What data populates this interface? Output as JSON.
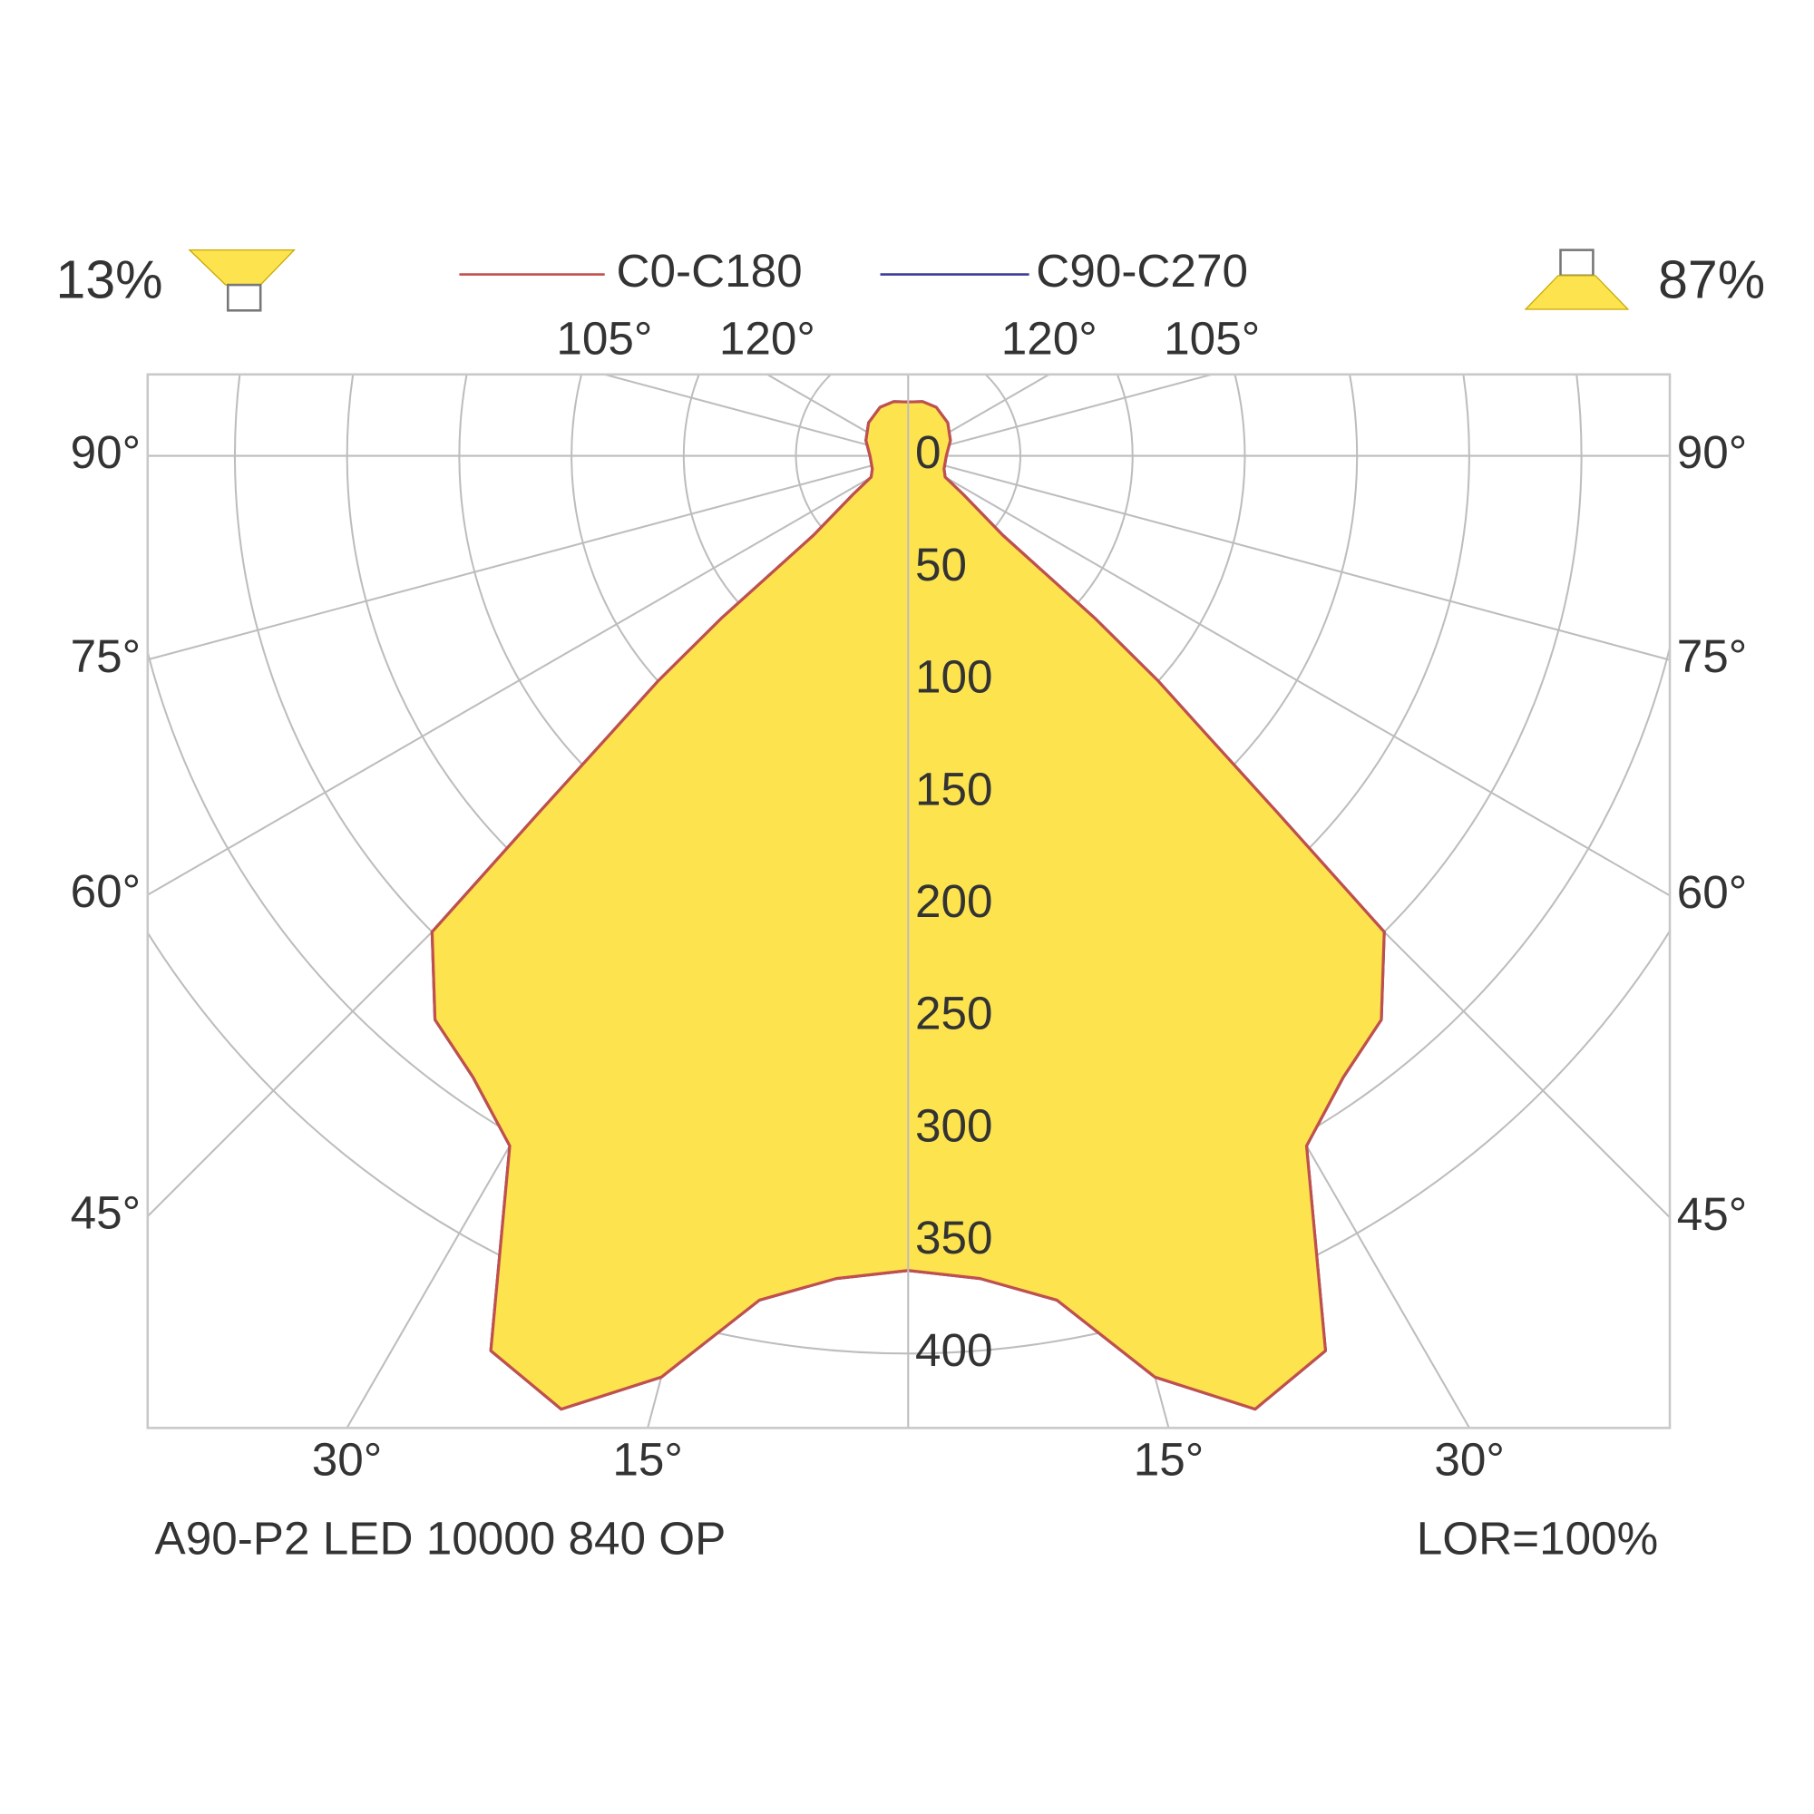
{
  "chart_data": {
    "type": "polar",
    "subtitle": "A90-P2 LED 10000 840 OP",
    "lor": "LOR=100%",
    "upward": "13%",
    "downward": "87%",
    "x": [
      0,
      5,
      10,
      15,
      20,
      25,
      30,
      35,
      40,
      45,
      46,
      47,
      48,
      49,
      50,
      55,
      60,
      70,
      90,
      110,
      130,
      150,
      165,
      180
    ],
    "series": [
      {
        "name": "C90-C270",
        "color": "#3b3b98",
        "values": [
          363,
          368,
          382,
          425,
          452,
          440,
          355,
          338,
          328,
          300,
          228,
          180,
          150,
          110,
          55,
          30,
          19,
          17,
          17,
          20,
          23,
          25,
          25,
          24
        ]
      },
      {
        "name": "C0-C180",
        "color": "#c0504d",
        "values": [
          363,
          368,
          382,
          425,
          452,
          440,
          355,
          338,
          328,
          300,
          228,
          180,
          150,
          110,
          55,
          30,
          19,
          17,
          17,
          20,
          23,
          25,
          25,
          24
        ]
      }
    ],
    "fill": "#fde44f",
    "rlim": [
      0,
      400
    ],
    "rticks": [
      0,
      50,
      100,
      150,
      200,
      250,
      300,
      350,
      400
    ],
    "left_angle_ticks": [
      {
        "value": 120,
        "label": "120°"
      },
      {
        "value": 105,
        "label": "105°"
      },
      {
        "value": 90,
        "label": "90°"
      },
      {
        "value": 75,
        "label": "75°"
      },
      {
        "value": 60,
        "label": "60°"
      },
      {
        "value": 45,
        "label": "45°"
      },
      {
        "value": 30,
        "label": "30°"
      },
      {
        "value": 15,
        "label": "15°"
      }
    ],
    "right_angle_ticks": [
      {
        "value": 120,
        "label": "120°"
      },
      {
        "value": 105,
        "label": "105°"
      },
      {
        "value": 90,
        "label": "90°"
      },
      {
        "value": 75,
        "label": "75°"
      },
      {
        "value": 60,
        "label": "60°"
      },
      {
        "value": 45,
        "label": "45°"
      },
      {
        "value": 30,
        "label": "30°"
      },
      {
        "value": 15,
        "label": "15°"
      }
    ],
    "grid": true
  }
}
